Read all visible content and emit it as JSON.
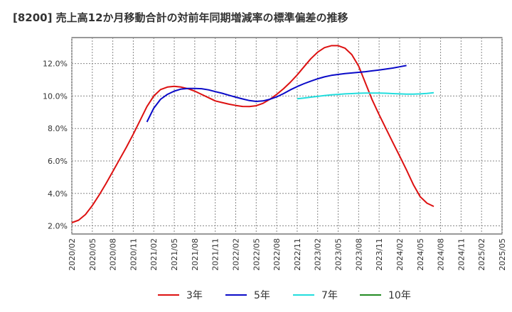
{
  "chart_data": {
    "type": "line",
    "title": "[8200]  売上高12か月移動合計の対前年同期増減率の標準偏差の推移",
    "ylim": [
      1.5,
      13.6
    ],
    "y_ticks": [
      2.0,
      4.0,
      6.0,
      8.0,
      10.0,
      12.0
    ],
    "y_tick_labels": [
      "2.0%",
      "4.0%",
      "6.0%",
      "8.0%",
      "10.0%",
      "12.0%"
    ],
    "x_ticks": [
      "2020/02",
      "2020/05",
      "2020/08",
      "2020/11",
      "2021/02",
      "2021/05",
      "2021/08",
      "2021/11",
      "2022/02",
      "2022/05",
      "2022/08",
      "2022/11",
      "2023/02",
      "2023/05",
      "2023/08",
      "2023/11",
      "2024/02",
      "2024/05",
      "2024/08",
      "2024/11",
      "2025/02",
      "2025/05"
    ],
    "grid": true,
    "legend_position": "bottom",
    "series": [
      {
        "name": "3年",
        "color": "#dd1111",
        "start": "2020/02",
        "values": [
          2.2,
          2.35,
          2.7,
          3.25,
          3.9,
          4.6,
          5.35,
          6.1,
          6.85,
          7.65,
          8.5,
          9.35,
          10.0,
          10.4,
          10.55,
          10.6,
          10.55,
          10.45,
          10.3,
          10.1,
          9.9,
          9.7,
          9.6,
          9.5,
          9.42,
          9.36,
          9.35,
          9.4,
          9.55,
          9.8,
          10.1,
          10.45,
          10.85,
          11.3,
          11.8,
          12.3,
          12.7,
          12.98,
          13.1,
          13.1,
          12.95,
          12.55,
          11.85,
          10.8,
          9.75,
          8.85,
          8.0,
          7.15,
          6.3,
          5.45,
          4.55,
          3.8,
          3.4,
          3.2
        ]
      },
      {
        "name": "5年",
        "color": "#0a0ac8",
        "start": "2021/01",
        "values": [
          8.4,
          9.25,
          9.8,
          10.1,
          10.3,
          10.43,
          10.47,
          10.47,
          10.45,
          10.38,
          10.27,
          10.17,
          10.05,
          9.93,
          9.82,
          9.72,
          9.67,
          9.7,
          9.8,
          9.95,
          10.15,
          10.38,
          10.58,
          10.76,
          10.92,
          11.06,
          11.18,
          11.27,
          11.33,
          11.38,
          11.42,
          11.46,
          11.5,
          11.55,
          11.6,
          11.66,
          11.72,
          11.8,
          11.88
        ]
      },
      {
        "name": "7年",
        "color": "#22dddd",
        "start": "2022/11",
        "values": [
          9.83,
          9.88,
          9.93,
          9.98,
          10.03,
          10.07,
          10.1,
          10.13,
          10.15,
          10.17,
          10.18,
          10.18,
          10.18,
          10.17,
          10.15,
          10.13,
          10.12,
          10.12,
          10.13,
          10.16,
          10.2
        ]
      },
      {
        "name": "10年",
        "color": "#228b22",
        "start": "2020/02",
        "values": []
      }
    ]
  }
}
